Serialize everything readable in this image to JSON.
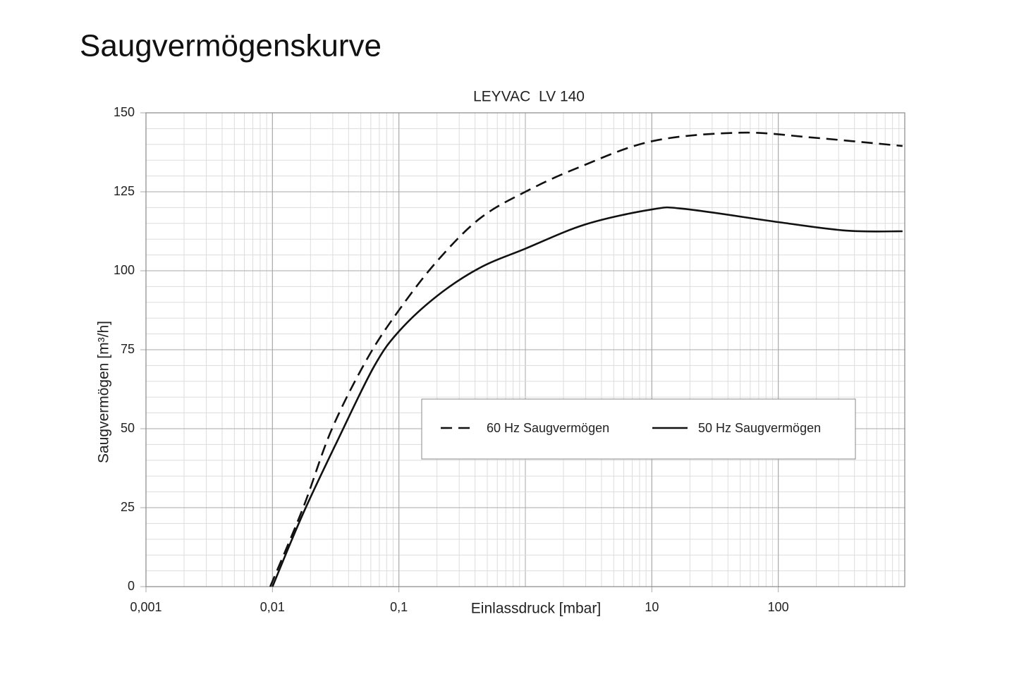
{
  "chart_data": {
    "type": "line",
    "page_title": "Saugvermögenskurve",
    "title": "LEYVAC  LV 140",
    "x_label": "Einlassdruck [mbar]",
    "y_label": "Saugvermögen [m³/h]",
    "xlog": true,
    "xlim": [
      0.001,
      1000
    ],
    "xticks": [
      {
        "value": 0.001,
        "label": "0,001"
      },
      {
        "value": 0.01,
        "label": "0,01"
      },
      {
        "value": 0.1,
        "label": "0,1"
      },
      10,
      100
    ],
    "ylim": [
      0,
      150
    ],
    "yticks": [
      0,
      25,
      50,
      75,
      100,
      125,
      150
    ],
    "grid": true,
    "series": [
      {
        "name": "60 Hz Saugvermögen",
        "color": "#111111",
        "dash": true,
        "x": [
          0.0096,
          0.0175,
          0.0293,
          0.0557,
          0.1,
          0.2,
          0.435,
          1,
          2.6,
          10,
          50,
          182,
          960
        ],
        "values": [
          0,
          25,
          49.6,
          71.9,
          87.5,
          103,
          116.5,
          125,
          132.6,
          141,
          143.7,
          142.2,
          139.5
        ]
      },
      {
        "name": "50 Hz Saugvermögen",
        "color": "#111111",
        "dash": false,
        "x": [
          0.01,
          0.0175,
          0.0333,
          0.0634,
          0.1,
          0.2,
          0.435,
          1,
          3,
          10,
          18,
          100,
          345,
          960
        ],
        "values": [
          0,
          23.2,
          46.9,
          69.6,
          80.8,
          92,
          100.9,
          107,
          114.7,
          119.4,
          119.6,
          115.4,
          112.7,
          112.5
        ]
      }
    ]
  }
}
